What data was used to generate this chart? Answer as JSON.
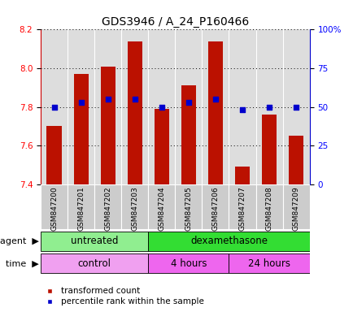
{
  "title": "GDS3946 / A_24_P160466",
  "samples": [
    "GSM847200",
    "GSM847201",
    "GSM847202",
    "GSM847203",
    "GSM847204",
    "GSM847205",
    "GSM847206",
    "GSM847207",
    "GSM847208",
    "GSM847209"
  ],
  "red_values": [
    7.7,
    7.97,
    8.01,
    8.14,
    7.79,
    7.91,
    8.14,
    7.49,
    7.76,
    7.65
  ],
  "blue_values": [
    50,
    53,
    55,
    55,
    50,
    53,
    55,
    48,
    50,
    50
  ],
  "ylim_left": [
    7.4,
    8.2
  ],
  "ylim_right": [
    0,
    100
  ],
  "yticks_left": [
    7.4,
    7.6,
    7.8,
    8.0,
    8.2
  ],
  "yticks_right": [
    0,
    25,
    50,
    75,
    100
  ],
  "ytick_labels_right": [
    "0",
    "25",
    "50",
    "75",
    "100%"
  ],
  "agent_groups": [
    {
      "label": "untreated",
      "start": 0,
      "end": 4,
      "color": "#90EE90"
    },
    {
      "label": "dexamethasone",
      "start": 4,
      "end": 10,
      "color": "#33DD33"
    }
  ],
  "time_groups": [
    {
      "label": "control",
      "start": 0,
      "end": 4,
      "color": "#F0A0F0"
    },
    {
      "label": "4 hours",
      "start": 4,
      "end": 7,
      "color": "#EE66EE"
    },
    {
      "label": "24 hours",
      "start": 7,
      "end": 10,
      "color": "#EE66EE"
    }
  ],
  "bar_color": "#BB1100",
  "dot_color": "#0000CC",
  "bar_bottom": 7.4,
  "bar_width": 0.55,
  "title_fontsize": 10,
  "tick_fontsize": 7.5,
  "label_fontsize": 8.5,
  "legend_fontsize": 7.5,
  "xtick_fontsize": 6.5
}
